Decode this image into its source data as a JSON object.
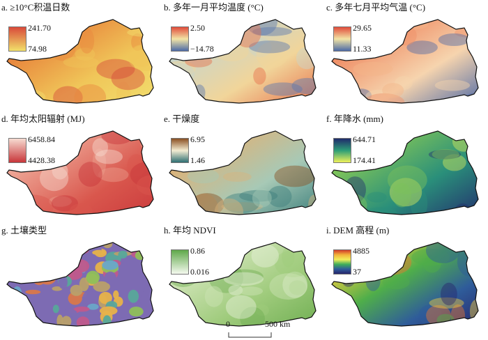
{
  "panels": [
    {
      "id": "a",
      "title": "a. ≥10°C积温日数",
      "legend_max": "241.70",
      "legend_min": "74.98",
      "colors": [
        "#d94a3a",
        "#f1e06a"
      ],
      "map_colors": [
        "#d44a3a",
        "#e8873d",
        "#f0c659",
        "#f2df6f"
      ]
    },
    {
      "id": "b",
      "title": "b. 多年一月平均温度 (°C)",
      "legend_max": "2.50",
      "legend_min": "−14.78",
      "colors": [
        "#e04b3b",
        "#f2e4a6",
        "#4c6aa6"
      ],
      "map_colors": [
        "#5a78b0",
        "#c9d5c9",
        "#f1d59a",
        "#e76f4b"
      ]
    },
    {
      "id": "c",
      "title": "c. 多年七月平均气温 (°C)",
      "legend_max": "29.65",
      "legend_min": "11.33",
      "colors": [
        "#e04b3b",
        "#f2e4a6",
        "#4c6aa6"
      ],
      "map_colors": [
        "#f3b58a",
        "#ef9068",
        "#f6d4ae",
        "#4f6aa6"
      ]
    },
    {
      "id": "d",
      "title": "d. 年均太阳辐射 (MJ)",
      "legend_max": "6458.84",
      "legend_min": "4428.38",
      "colors": [
        "#f7dcd2",
        "#c8363a"
      ],
      "map_colors": [
        "#f6d9cf",
        "#ec9f8f",
        "#d9574d",
        "#c8363a"
      ]
    },
    {
      "id": "e",
      "title": "e. 干燥度",
      "legend_max": "6.95",
      "legend_min": "1.46",
      "colors": [
        "#8a4f22",
        "#f3ecd2",
        "#2f6f73"
      ],
      "map_colors": [
        "#8a4f22",
        "#d9b47d",
        "#a7c9b6",
        "#3d7f7c"
      ]
    },
    {
      "id": "f",
      "title": "f. 年降水 (mm)",
      "legend_max": "644.71",
      "legend_min": "174.41",
      "colors": [
        "#1f2b6b",
        "#2d9e77",
        "#eef15a"
      ],
      "map_colors": [
        "#d7e95a",
        "#7cc25a",
        "#2a8f7a",
        "#23306e"
      ]
    },
    {
      "id": "g",
      "title": "g. 土壤类型",
      "legend_max": "",
      "legend_min": "",
      "colors": [],
      "map_colors": [
        "#7d6bb3",
        "#e7b24a",
        "#6aa7c8",
        "#c05a8c",
        "#8fbf5a",
        "#d9784a",
        "#58a89a",
        "#b9a06a"
      ]
    },
    {
      "id": "h",
      "title": "h. 年均 NDVI",
      "legend_max": "0.86",
      "legend_min": "0.016",
      "colors": [
        "#5fa84a",
        "#f4f9ee"
      ],
      "map_colors": [
        "#e8f2dc",
        "#cfe4b6",
        "#9fcb7c",
        "#6fae52"
      ]
    },
    {
      "id": "i",
      "title": "i. DEM 高程 (m)",
      "legend_max": "4885",
      "legend_min": "37",
      "colors": [
        "#d23a2a",
        "#f2b33a",
        "#f2ee5a",
        "#3fae5a",
        "#2f5c9a",
        "#26246a"
      ],
      "map_colors": [
        "#e8762e",
        "#f3cf3f",
        "#4fae4a",
        "#2f5c9a",
        "#28266a"
      ]
    }
  ],
  "scalebar": {
    "left": "0",
    "right": "500 km"
  }
}
